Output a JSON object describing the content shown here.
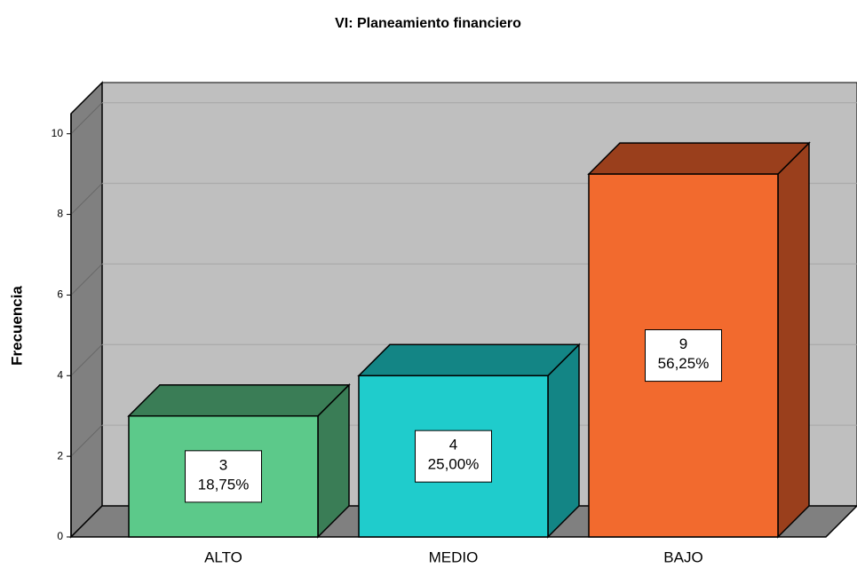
{
  "chart_data": {
    "type": "bar3d",
    "title": "VI: Planeamiento financiero",
    "y_label": "Frecuencia",
    "categories": [
      "ALTO",
      "MEDIO",
      "BAJO"
    ],
    "values": [
      3,
      4,
      9
    ],
    "percentage_labels": [
      "18,75%",
      "25,00%",
      "56,25%"
    ],
    "colors": [
      "#5cc98a",
      "#1fcccc",
      "#f26a2e"
    ],
    "side_colors": [
      "#3a7d56",
      "#138585",
      "#9a3f1c"
    ],
    "ylim": [
      0,
      10.5
    ],
    "yticks": [
      0,
      2,
      4,
      6,
      8,
      10
    ],
    "grid": true
  }
}
